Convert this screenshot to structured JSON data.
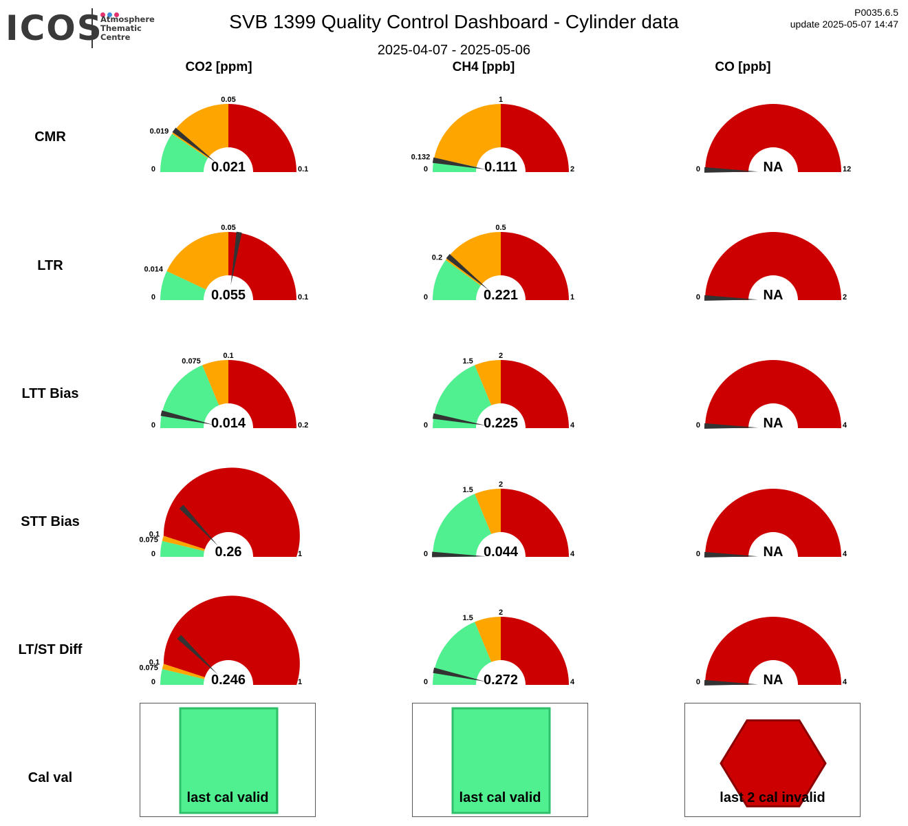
{
  "header": {
    "logo_word": "ICOS",
    "logo_lines": [
      "Atmosphere",
      "Thematic",
      "Centre"
    ],
    "title": "SVB 1399 Quality Control Dashboard - Cylinder data",
    "period": "2025-04-07 - 2025-05-06",
    "version": "P0035.6.5",
    "update": "update  2025-05-07 14:47"
  },
  "colors": {
    "green": "#50ef90",
    "orange": "#ffa500",
    "red": "#cc0000",
    "needle": "#333333",
    "logo_dots": [
      "#e2336f",
      "#3d8ede",
      "#e2336f"
    ]
  },
  "columns": [
    "CO2 [ppm]",
    "CH4 [ppb]",
    "CO [ppb]"
  ],
  "rows": [
    "CMR",
    "LTR",
    "LTT Bias",
    "STT Bias",
    "LT/ST Diff",
    "Cal val"
  ],
  "chart_data": {
    "type": "gauge",
    "gauges": [
      {
        "row": "CMR",
        "column": "CO2 [ppm]",
        "min": 0,
        "max": 0.1,
        "thresholds": [
          0.019,
          0.05
        ],
        "threshold_labels": [
          "0.019",
          "0.05"
        ],
        "value": 0.021,
        "display": "0.021",
        "min_label": "0",
        "max_label": "0.1"
      },
      {
        "row": "CMR",
        "column": "CH4 [ppb]",
        "min": 0,
        "max": 2,
        "thresholds": [
          0.132,
          1
        ],
        "threshold_labels": [
          "0.132",
          "1"
        ],
        "value": 0.111,
        "display": "0.111",
        "min_label": "0",
        "max_label": "2"
      },
      {
        "row": "CMR",
        "column": "CO [ppb]",
        "min": 0,
        "max": 12,
        "thresholds": [
          0,
          0
        ],
        "threshold_labels": [],
        "value": 0.12,
        "display": "NA",
        "min_label": "0",
        "max_label": "12"
      },
      {
        "row": "LTR",
        "column": "CO2 [ppm]",
        "min": 0,
        "max": 0.1,
        "thresholds": [
          0.014,
          0.05
        ],
        "threshold_labels": [
          "0.014",
          "0.05"
        ],
        "value": 0.055,
        "display": "0.055",
        "min_label": "0",
        "max_label": "0.1"
      },
      {
        "row": "LTR",
        "column": "CH4 [ppb]",
        "min": 0,
        "max": 1,
        "thresholds": [
          0.2,
          0.5
        ],
        "threshold_labels": [
          "0.2",
          "0.5"
        ],
        "value": 0.221,
        "display": "0.221",
        "min_label": "0",
        "max_label": "1"
      },
      {
        "row": "LTR",
        "column": "CO [ppb]",
        "min": 0,
        "max": 2,
        "thresholds": [
          0,
          0
        ],
        "threshold_labels": [],
        "value": 0.02,
        "display": "NA",
        "min_label": "0",
        "max_label": "2"
      },
      {
        "row": "LTT Bias",
        "column": "CO2 [ppm]",
        "min": 0,
        "max": 0.2,
        "thresholds": [
          0.075,
          0.1
        ],
        "threshold_labels": [
          "0.075",
          "0.1"
        ],
        "value": 0.014,
        "display": "0.014",
        "min_label": "0",
        "max_label": "0.2"
      },
      {
        "row": "LTT Bias",
        "column": "CH4 [ppb]",
        "min": 0,
        "max": 4,
        "thresholds": [
          1.5,
          2
        ],
        "threshold_labels": [
          "1.5",
          "2"
        ],
        "value": 0.225,
        "display": "0.225",
        "min_label": "0",
        "max_label": "4"
      },
      {
        "row": "LTT Bias",
        "column": "CO [ppb]",
        "min": 0,
        "max": 4,
        "thresholds": [
          0,
          0
        ],
        "threshold_labels": [],
        "value": 0.04,
        "display": "NA",
        "min_label": "0",
        "max_label": "4"
      },
      {
        "row": "STT Bias",
        "column": "CO2 [ppm]",
        "min": 0,
        "max": 1,
        "thresholds": [
          0.075,
          0.1
        ],
        "threshold_labels": [
          "0.075",
          "0.1"
        ],
        "value": 0.26,
        "display": "0.26",
        "min_label": "0",
        "max_label": "1"
      },
      {
        "row": "STT Bias",
        "column": "CH4 [ppb]",
        "min": 0,
        "max": 4,
        "thresholds": [
          1.5,
          2
        ],
        "threshold_labels": [
          "1.5",
          "2"
        ],
        "value": 0.044,
        "display": "0.044",
        "min_label": "0",
        "max_label": "4"
      },
      {
        "row": "STT Bias",
        "column": "CO [ppb]",
        "min": 0,
        "max": 4,
        "thresholds": [
          0,
          0
        ],
        "threshold_labels": [],
        "value": 0.04,
        "display": "NA",
        "min_label": "0",
        "max_label": "4"
      },
      {
        "row": "LT/ST Diff",
        "column": "CO2 [ppm]",
        "min": 0,
        "max": 1,
        "thresholds": [
          0.075,
          0.1
        ],
        "threshold_labels": [
          "0.075",
          "0.1"
        ],
        "value": 0.246,
        "display": "0.246",
        "min_label": "0",
        "max_label": "1"
      },
      {
        "row": "LT/ST Diff",
        "column": "CH4 [ppb]",
        "min": 0,
        "max": 4,
        "thresholds": [
          1.5,
          2
        ],
        "threshold_labels": [
          "1.5",
          "2"
        ],
        "value": 0.272,
        "display": "0.272",
        "min_label": "0",
        "max_label": "4"
      },
      {
        "row": "LT/ST Diff",
        "column": "CO [ppb]",
        "min": 0,
        "max": 4,
        "thresholds": [
          0,
          0
        ],
        "threshold_labels": [],
        "value": 0.04,
        "display": "NA",
        "min_label": "0",
        "max_label": "4"
      }
    ],
    "cal_val": [
      {
        "column": "CO2 [ppm]",
        "status": "valid",
        "label": "last cal valid"
      },
      {
        "column": "CH4 [ppb]",
        "status": "valid",
        "label": "last cal valid"
      },
      {
        "column": "CO [ppb]",
        "status": "invalid",
        "label": "last 2 cal invalid"
      }
    ]
  }
}
